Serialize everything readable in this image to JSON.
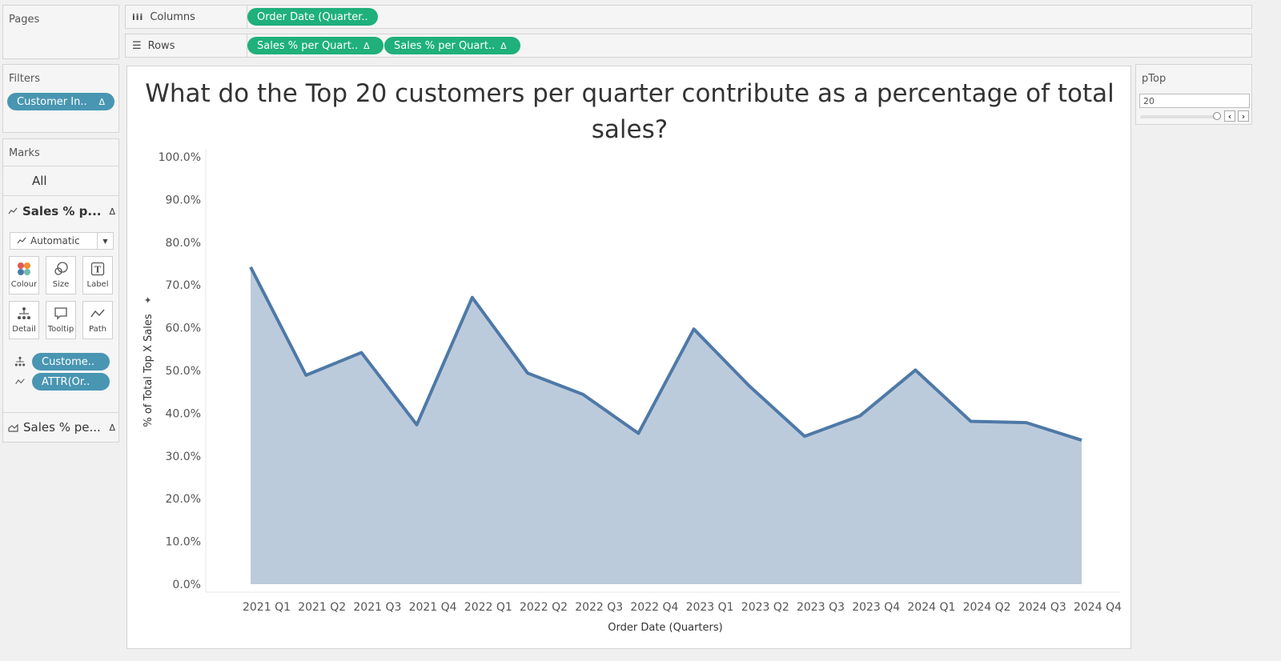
{
  "pages": {
    "title": "Pages"
  },
  "columns_shelf": {
    "label": "Columns",
    "pills": [
      "Order Date (Quarter.."
    ]
  },
  "rows_shelf": {
    "label": "Rows",
    "pills": [
      "Sales % per Quart..",
      "Sales % per Quart.."
    ]
  },
  "filters": {
    "title": "Filters",
    "pills": [
      "Customer In.."
    ]
  },
  "marks": {
    "title": "Marks",
    "all_label": "All",
    "card1_label": "Sales % p...",
    "mark_type": "Automatic",
    "buttons": [
      "Colour",
      "Size",
      "Label",
      "Detail",
      "Tooltip",
      "Path"
    ],
    "field_pills": [
      "Custome..",
      "ATTR(Or.."
    ],
    "card2_label": "Sales % pe..."
  },
  "parameter": {
    "title": "pTop",
    "value": "20"
  },
  "colors": {
    "accent_green": "#1fb07b",
    "pill_blue": "#4996b2",
    "line": "#4e79a7",
    "area": "#bccbdc"
  },
  "chart_data": {
    "type": "area",
    "title": "What do the Top 20 customers per quarter contribute as a percentage of total sales?",
    "xlabel": "Order Date (Quarters)",
    "ylabel": "% of Total Top X Sales",
    "categories": [
      "2021 Q1",
      "2021 Q2",
      "2021 Q3",
      "2021 Q4",
      "2022 Q1",
      "2022 Q2",
      "2022 Q3",
      "2022 Q4",
      "2023 Q1",
      "2023 Q2",
      "2023 Q3",
      "2023 Q4",
      "2024 Q1",
      "2024 Q2",
      "2024 Q3",
      "2024 Q4"
    ],
    "values": [
      74.2,
      48.9,
      54.2,
      37.3,
      67.1,
      49.4,
      44.4,
      35.3,
      59.7,
      46.4,
      34.6,
      39.4,
      50.1,
      38.1,
      37.8,
      33.7
    ],
    "ylim": [
      0,
      100
    ],
    "yticks": [
      "0.0%",
      "10.0%",
      "20.0%",
      "30.0%",
      "40.0%",
      "50.0%",
      "60.0%",
      "70.0%",
      "80.0%",
      "90.0%",
      "100.0%"
    ],
    "grid": false
  }
}
